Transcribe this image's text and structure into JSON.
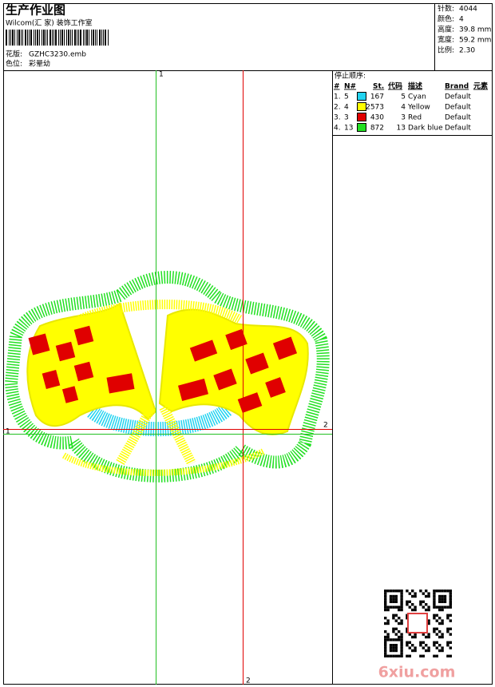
{
  "header": {
    "title": "生产作业图",
    "studio": "Wilcom(汇 家) 装饰工作室",
    "design_label": "花版:",
    "design_file": "GZHC3230.emb",
    "colorway_label": "色位:",
    "colorway": "彩晕幼"
  },
  "specs": [
    {
      "label": "针数:",
      "value": "4044"
    },
    {
      "label": "颜色:",
      "value": "4"
    },
    {
      "label": "高度:",
      "value": "39.8 mm"
    },
    {
      "label": "宽度:",
      "value": "59.2 mm"
    },
    {
      "label": "比例:",
      "value": "2.30"
    }
  ],
  "stop_sequence": {
    "title": "停止顺序:",
    "columns": [
      "#",
      "N#",
      "St.",
      "代码",
      "描述",
      "Brand",
      "元素"
    ],
    "rows": [
      {
        "index": "1.",
        "needle": "5",
        "color": "#22d3f0",
        "stitches": "167",
        "code": "5",
        "description": "Cyan",
        "brand": "Default"
      },
      {
        "index": "2.",
        "needle": "4",
        "color": "#ffff00",
        "stitches": "2573",
        "code": "4",
        "description": "Yellow",
        "brand": "Default"
      },
      {
        "index": "3.",
        "needle": "3",
        "color": "#e00000",
        "stitches": "430",
        "code": "3",
        "description": "Red",
        "brand": "Default"
      },
      {
        "index": "4.",
        "needle": "13",
        "color": "#22e022",
        "stitches": "872",
        "code": "13",
        "description": "Dark blue",
        "brand": "Default"
      }
    ]
  },
  "axes": {
    "top": "1",
    "left": "1",
    "right": "2",
    "bottom": "2"
  },
  "watermark": "6xiu.com"
}
